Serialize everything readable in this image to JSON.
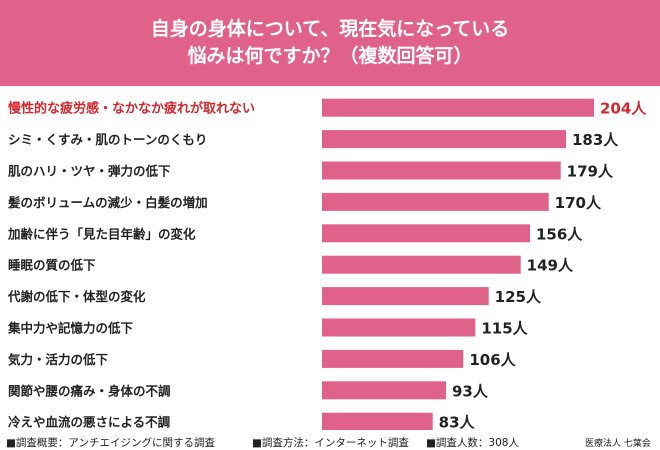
{
  "header": {
    "title_line1": "自身の身体について、現在気になっている",
    "title_line2": "悩みは何ですか？（複数回答可）"
  },
  "colors": {
    "header_bg": "#e0618a",
    "bar": "#e0618a",
    "highlight_text": "#d7262b",
    "text": "#222222"
  },
  "chart_data": {
    "type": "bar",
    "orientation": "horizontal",
    "categories": [
      "慢性的な疲労感・なかなか疲れが取れない",
      "シミ・くすみ・肌のトーンのくもり",
      "肌のハリ・ツヤ・弾力の低下",
      "髪のボリュームの減少・白髪の増加",
      "加齢に伴う「見た目年齢」の変化",
      "睡眠の質の低下",
      "代謝の低下・体型の変化",
      "集中力や記憶力の低下",
      "気力・活力の低下",
      "関節や腰の痛み・身体の不調",
      "冷えや血流の悪さによる不調"
    ],
    "values": [
      204,
      183,
      179,
      170,
      156,
      149,
      125,
      115,
      106,
      93,
      83
    ],
    "value_labels": [
      "204人",
      "183人",
      "179人",
      "170人",
      "156人",
      "149人",
      "125人",
      "115人",
      "106人",
      "93人",
      "83人"
    ],
    "highlight_index": 0,
    "grid": false
  },
  "footer": {
    "overview": "■調査概要：アンチエイジングに関する調査",
    "method": "■調査方法：インターネット調査",
    "respondents": "■調査人数：308人",
    "source": "医療法人 七葉会"
  }
}
